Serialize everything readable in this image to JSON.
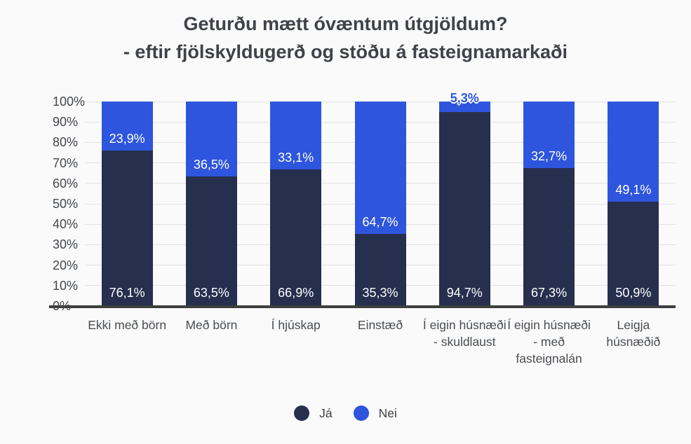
{
  "title": "Geturðu mætt óvæntum útgjöldum?",
  "subtitle": "- eftir fjölskyldugerð og stöðu á fasteignamarkaði",
  "chart_data": {
    "type": "bar",
    "subtype": "stacked-column-100",
    "title": "Geturðu mætt óvæntum útgjöldum?",
    "subtitle": "- eftir fjölskyldugerð og stöðu á fasteignamarkaði",
    "categories": [
      "Ekki með börn",
      "Með börn",
      "Í hjúskap",
      "Einstæð",
      "Í eigin húsnæði - skuldlaust",
      "Í eigin húsnæði - með fasteignalán",
      "Leigja húsnæðið"
    ],
    "series": [
      {
        "name": "Já",
        "color": "#262f4e",
        "values": [
          76.1,
          63.5,
          66.9,
          35.3,
          94.7,
          67.3,
          50.9
        ],
        "labels": [
          "76,1%",
          "63,5%",
          "66,9%",
          "35,3%",
          "94,7%",
          "67,3%",
          "50,9%"
        ]
      },
      {
        "name": "Nei",
        "color": "#2e55dd",
        "values": [
          23.9,
          36.5,
          33.1,
          64.7,
          5.3,
          32.7,
          49.1
        ],
        "labels": [
          "23,9%",
          "36,5%",
          "33,1%",
          "64,7%",
          "5,3%",
          "32,7%",
          "49,1%"
        ]
      }
    ],
    "y_ticks": [
      "0%",
      "10%",
      "20%",
      "30%",
      "40%",
      "50%",
      "60%",
      "70%",
      "80%",
      "90%",
      "100%"
    ],
    "ylim": [
      0,
      100
    ],
    "xlabel": "",
    "ylabel": "",
    "grid": true,
    "legend_position": "bottom"
  },
  "colors": {
    "background": "#fafafa",
    "title_text": "#3f4247",
    "axis_text": "#43464b",
    "category_text": "#4a4d52",
    "gridline": "#e1e1e1",
    "axis_line": "#3f3f3f",
    "series_ja": "#262f4e",
    "series_nei": "#2e55dd"
  }
}
